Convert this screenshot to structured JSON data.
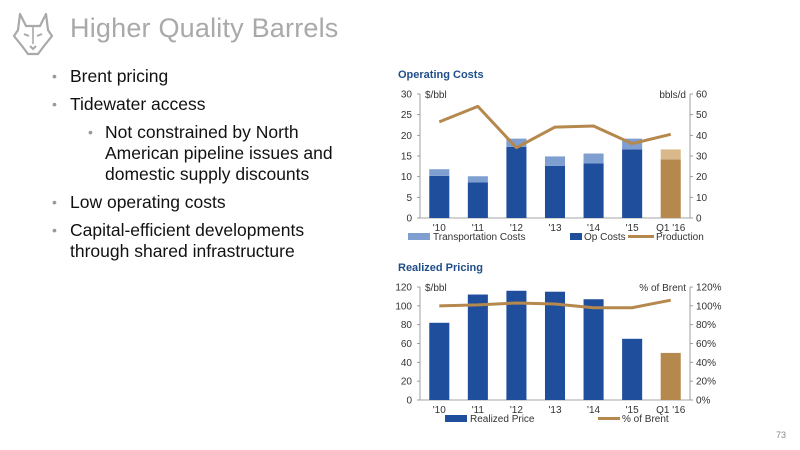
{
  "page": {
    "title": "Higher Quality Barrels",
    "page_number": "73",
    "logo_icon": "husky-head-logo"
  },
  "bullets": [
    {
      "text": "Brent pricing",
      "level": 1
    },
    {
      "text": "Tidewater access",
      "level": 1
    },
    {
      "text": "Not constrained by North American pipeline issues and domestic supply discounts",
      "level": 2
    },
    {
      "text": "Low operating costs",
      "level": 1
    },
    {
      "text": "Capital-efficient developments through shared infrastructure",
      "level": 1
    }
  ],
  "colors": {
    "navy": "#1f4e9c",
    "light_blue": "#7f9fd0",
    "gold": "#b5884d",
    "gold_light": "#d9b98a",
    "title_gray": "#a9a9a9",
    "chart_title": "#1f4e8a"
  },
  "chart_data": [
    {
      "type": "bar",
      "title": "Operating Costs",
      "y_unit_left": "$/bbl",
      "y_unit_right": "bbls/d",
      "categories": [
        "'10",
        "'11",
        "'12",
        "'13",
        "'14",
        "'15",
        "Q1 '16"
      ],
      "ylim_left": [
        0,
        30
      ],
      "yticks_left": [
        "0",
        "5",
        "10",
        "15",
        "20",
        "25",
        "30"
      ],
      "ylim_right": [
        0,
        60
      ],
      "yticks_right": [
        "0",
        "10",
        "20",
        "30",
        "40",
        "50",
        "60"
      ],
      "series": [
        {
          "name": "Op Costs",
          "kind": "stacked_bar",
          "values": [
            10.2,
            8.6,
            17.2,
            12.6,
            13.2,
            16.6,
            14.2
          ]
        },
        {
          "name": "Transportation Costs",
          "kind": "stacked_bar",
          "values": [
            1.6,
            1.5,
            2.0,
            2.3,
            2.4,
            2.6,
            2.4
          ]
        },
        {
          "name": "Production",
          "kind": "line",
          "axis": "right",
          "values": [
            46.5,
            54,
            34,
            44,
            44.5,
            36,
            40.5
          ]
        }
      ],
      "legend": [
        "Transportation Costs",
        "Op Costs",
        "Production"
      ],
      "legend_position": "bottom"
    },
    {
      "type": "bar",
      "title": "Realized Pricing",
      "y_unit_left": "$/bbl",
      "y_unit_right": "% of Brent",
      "categories": [
        "'10",
        "'11",
        "'12",
        "'13",
        "'14",
        "'15",
        "Q1 '16"
      ],
      "ylim_left": [
        0,
        120
      ],
      "yticks_left": [
        "0",
        "20",
        "40",
        "60",
        "80",
        "100",
        "120"
      ],
      "ylim_right": [
        0,
        120
      ],
      "yticks_right": [
        "0%",
        "20%",
        "40%",
        "60%",
        "80%",
        "100%",
        "120%"
      ],
      "series": [
        {
          "name": "Realized Price",
          "kind": "bar",
          "values": [
            82,
            112,
            116,
            115,
            107,
            65,
            50
          ]
        },
        {
          "name": "% of Brent",
          "kind": "line",
          "axis": "right",
          "values": [
            100,
            101,
            103,
            102,
            98,
            98,
            106
          ]
        }
      ],
      "legend": [
        "Realized Price",
        "% of Brent"
      ],
      "legend_position": "bottom"
    }
  ]
}
